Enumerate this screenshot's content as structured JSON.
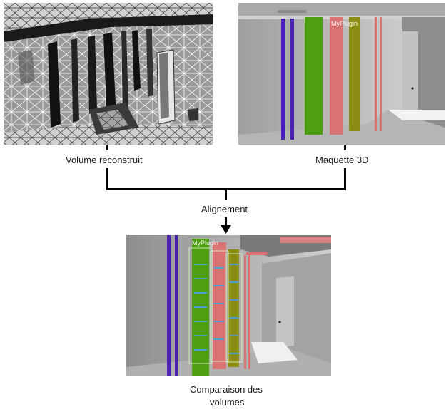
{
  "panels": {
    "reconstructed": {
      "label": "Volume reconstruit"
    },
    "model_3d": {
      "label": "Maquette 3D",
      "overlay_label": "MyPlugin"
    },
    "comparison": {
      "label_line1": "Comparaison des",
      "label_line2": "volumes",
      "overlay_label": "MyPlugin"
    }
  },
  "flow": {
    "merge_label": "Alignement"
  },
  "colors": {
    "pipe_purple": "#4b1fb5",
    "pipe_green": "#4d9e12",
    "pipe_pink": "#d97373",
    "pipe_olive": "#8a8c14",
    "wall_grey": "#c9c9c9",
    "wireframe": "#ffffff"
  }
}
